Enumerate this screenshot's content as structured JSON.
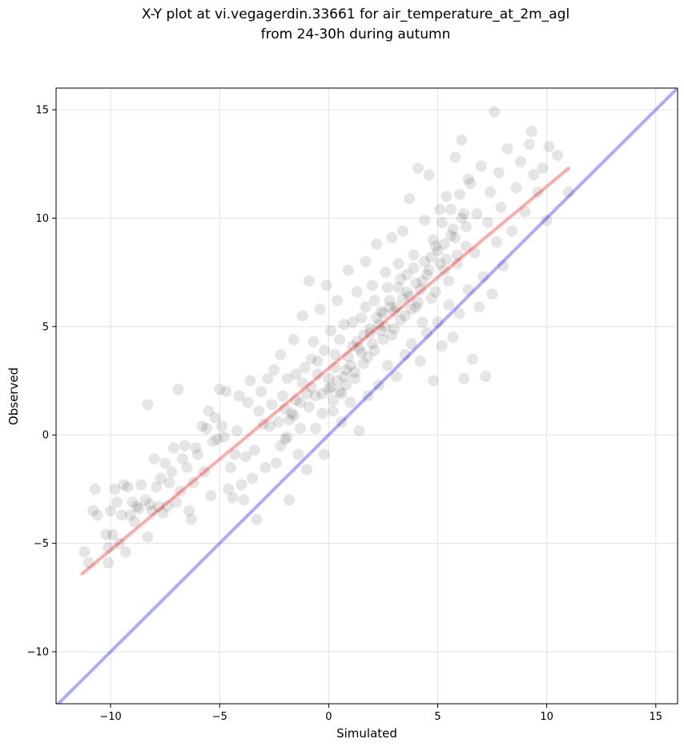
{
  "chart_data": {
    "type": "scatter",
    "title": "X-Y plot at vi.vegagerdin.33661 for air_temperature_at_2m_agl",
    "subtitle": "from 24-30h during autumn",
    "xlabel": "Simulated",
    "ylabel": "Observed",
    "xlim": [
      -12.5,
      16
    ],
    "ylim": [
      -12.4,
      16
    ],
    "xticks": [
      -10,
      -5,
      0,
      5,
      10,
      15
    ],
    "yticks": [
      -10,
      -5,
      0,
      5,
      10,
      15
    ],
    "xtick_labels": [
      "−10",
      "−5",
      "0",
      "5",
      "10",
      "15"
    ],
    "ytick_labels": [
      "−10",
      "−5",
      "0",
      "5",
      "10",
      "15"
    ],
    "grid": true,
    "point_color": "#000000",
    "point_alpha": 0.1,
    "identity_line": {
      "color": "#0000ff",
      "from": [
        -12.5,
        -12.5
      ],
      "to": [
        16,
        16
      ]
    },
    "fit_line": {
      "color": "#ff0000",
      "from": [
        -11.3,
        -6.4
      ],
      "to": [
        11,
        12.3
      ]
    },
    "points": [
      [
        -11.2,
        -5.4
      ],
      [
        -11,
        -5.9
      ],
      [
        -10.8,
        -3.5
      ],
      [
        -10.7,
        -2.5
      ],
      [
        -10.6,
        -3.7
      ],
      [
        -10.2,
        -4.6
      ],
      [
        -10.1,
        -5.9
      ],
      [
        -10.1,
        -5.2
      ],
      [
        -10,
        -3.5
      ],
      [
        -9.9,
        -4.6
      ],
      [
        -9.8,
        -2.5
      ],
      [
        -9.7,
        -3.1
      ],
      [
        -9.6,
        -5
      ],
      [
        -9.5,
        -3.7
      ],
      [
        -9.4,
        -2.3
      ],
      [
        -9.3,
        -5.4
      ],
      [
        -9.2,
        -2.4
      ],
      [
        -9.1,
        -3.7
      ],
      [
        -9,
        -3.1
      ],
      [
        -8.9,
        -4
      ],
      [
        -8.8,
        -3.3
      ],
      [
        -8.7,
        -3.4
      ],
      [
        -8.6,
        -2.3
      ],
      [
        -8.4,
        -3
      ],
      [
        -8.3,
        -4.7
      ],
      [
        -8.3,
        1.4
      ],
      [
        -8.2,
        -3.2
      ],
      [
        -8.1,
        -3.5
      ],
      [
        -8,
        -1.1
      ],
      [
        -7.9,
        -2.4
      ],
      [
        -7.8,
        -3.3
      ],
      [
        -7.7,
        -2
      ],
      [
        -7.6,
        -3.6
      ],
      [
        -7.5,
        -1.3
      ],
      [
        -7.4,
        -3.3
      ],
      [
        -7.3,
        -2.2
      ],
      [
        -7.2,
        -1.7
      ],
      [
        -7.1,
        -0.6
      ],
      [
        -7,
        -3.1
      ],
      [
        -6.9,
        2.1
      ],
      [
        -6.8,
        -2.6
      ],
      [
        -6.7,
        -1.1
      ],
      [
        -6.6,
        -0.5
      ],
      [
        -6.5,
        -1.5
      ],
      [
        -6.4,
        -3.5
      ],
      [
        -6.3,
        -3.9
      ],
      [
        -6.2,
        -2.2
      ],
      [
        -6.1,
        -0.6
      ],
      [
        -6,
        -0.9
      ],
      [
        -5.8,
        0.4
      ],
      [
        -5.7,
        -1.7
      ],
      [
        -5.6,
        0.3
      ],
      [
        -5.5,
        1.1
      ],
      [
        -5.4,
        -2.8
      ],
      [
        -5.3,
        -0.3
      ],
      [
        -5.2,
        0.8
      ],
      [
        -5.1,
        -0.2
      ],
      [
        -5,
        2.1
      ],
      [
        -4.9,
        0.4
      ],
      [
        -4.8,
        -0.1
      ],
      [
        -4.7,
        2
      ],
      [
        -4.6,
        -2.5
      ],
      [
        -4.5,
        -1.5
      ],
      [
        -4.4,
        -2.9
      ],
      [
        -4.3,
        -0.9
      ],
      [
        -4.2,
        0.2
      ],
      [
        -4.1,
        1.8
      ],
      [
        -4,
        -2.3
      ],
      [
        -3.9,
        -3
      ],
      [
        -3.8,
        -1
      ],
      [
        -3.7,
        1.5
      ],
      [
        -3.6,
        2.5
      ],
      [
        -3.5,
        -2
      ],
      [
        -3.4,
        -0.7
      ],
      [
        -3.3,
        -3.9
      ],
      [
        -3.2,
        1.1
      ],
      [
        -3.1,
        2
      ],
      [
        -3,
        0.5
      ],
      [
        -2.9,
        -1.5
      ],
      [
        -2.8,
        2.6
      ],
      [
        -2.7,
        0.4
      ],
      [
        -2.6,
        1.4
      ],
      [
        -2.5,
        3
      ],
      [
        -2.4,
        -1.3
      ],
      [
        -2.3,
        0.6
      ],
      [
        -2.2,
        3.7
      ],
      [
        -2.1,
        1.8
      ],
      [
        -2,
        -0.2
      ],
      [
        -1.9,
        2.6
      ],
      [
        -1.8,
        -3
      ],
      [
        -1.7,
        1
      ],
      [
        -1.6,
        4.4
      ],
      [
        -1.5,
        2.8
      ],
      [
        -1.4,
        -0.9
      ],
      [
        -1.3,
        1.5
      ],
      [
        -1.2,
        5.5
      ],
      [
        -1.1,
        3.1
      ],
      [
        -1,
        -1.6
      ],
      [
        -0.9,
        7.1
      ],
      [
        -0.8,
        2.2
      ],
      [
        -0.7,
        4.3
      ],
      [
        -0.6,
        0.3
      ],
      [
        -0.5,
        3.4
      ],
      [
        -0.4,
        5.8
      ],
      [
        -0.3,
        1.9
      ],
      [
        -0.2,
        -0.9
      ],
      [
        -0.1,
        6.9
      ],
      [
        0,
        2.6
      ],
      [
        0.1,
        4.8
      ],
      [
        0.2,
        1.1
      ],
      [
        0.3,
        3.7
      ],
      [
        0.4,
        6.2
      ],
      [
        0.5,
        2
      ],
      [
        0.6,
        0.6
      ],
      [
        0.7,
        5.1
      ],
      [
        0.8,
        3
      ],
      [
        0.9,
        7.6
      ],
      [
        1,
        1.5
      ],
      [
        1.1,
        4.1
      ],
      [
        1.2,
        2.6
      ],
      [
        1.3,
        6.6
      ],
      [
        1.4,
        0.2
      ],
      [
        1.5,
        5.4
      ],
      [
        1.6,
        3.3
      ],
      [
        1.7,
        8
      ],
      [
        1.8,
        1.8
      ],
      [
        1.9,
        4.7
      ],
      [
        2,
        6.9
      ],
      [
        2.1,
        3.9
      ],
      [
        2.2,
        8.8
      ],
      [
        2.3,
        2.3
      ],
      [
        2.4,
        5.7
      ],
      [
        2.5,
        4.4
      ],
      [
        2.6,
        7.5
      ],
      [
        2.7,
        3.2
      ],
      [
        2.8,
        6.2
      ],
      [
        2.9,
        9.1
      ],
      [
        3,
        4.9
      ],
      [
        3.1,
        2.7
      ],
      [
        3.2,
        7.9
      ],
      [
        3.3,
        5.3
      ],
      [
        3.4,
        9.4
      ],
      [
        3.5,
        3.7
      ],
      [
        3.6,
        6.6
      ],
      [
        3.7,
        10.9
      ],
      [
        3.8,
        4.2
      ],
      [
        3.9,
        8.3
      ],
      [
        4,
        5.9
      ],
      [
        4.1,
        12.3
      ],
      [
        4.2,
        3.4
      ],
      [
        4.3,
        7.1
      ],
      [
        4.4,
        9.9
      ],
      [
        4.5,
        4.7
      ],
      [
        4.6,
        12
      ],
      [
        4.7,
        6.3
      ],
      [
        4.8,
        2.5
      ],
      [
        4.9,
        8.7
      ],
      [
        5,
        5.2
      ],
      [
        5.1,
        10.4
      ],
      [
        5.2,
        4.1
      ],
      [
        5.3,
        7.6
      ],
      [
        5.4,
        11
      ],
      [
        5.5,
        6
      ],
      [
        5.6,
        9.2
      ],
      [
        5.7,
        4.5
      ],
      [
        5.8,
        12.8
      ],
      [
        5.9,
        7.9
      ],
      [
        6,
        5.6
      ],
      [
        6.1,
        13.6
      ],
      [
        6.2,
        2.6
      ],
      [
        6.3,
        9.6
      ],
      [
        6.4,
        6.7
      ],
      [
        6.5,
        11.6
      ],
      [
        6.6,
        3.5
      ],
      [
        6.7,
        8.4
      ],
      [
        6.8,
        10.2
      ],
      [
        6.9,
        5.9
      ],
      [
        7,
        12.4
      ],
      [
        7.1,
        7.3
      ],
      [
        7.2,
        2.7
      ],
      [
        7.3,
        9.8
      ],
      [
        7.4,
        11.2
      ],
      [
        7.5,
        6.5
      ],
      [
        7.6,
        14.9
      ],
      [
        7.7,
        8.9
      ],
      [
        7.8,
        12.1
      ],
      [
        7.9,
        10.5
      ],
      [
        8,
        7.8
      ],
      [
        8.2,
        13.2
      ],
      [
        8.4,
        9.4
      ],
      [
        8.6,
        11.4
      ],
      [
        8.8,
        12.6
      ],
      [
        9,
        10.3
      ],
      [
        9.2,
        13.4
      ],
      [
        9.3,
        14
      ],
      [
        9.4,
        12
      ],
      [
        9.6,
        11.2
      ],
      [
        9.8,
        12.3
      ],
      [
        10,
        9.9
      ],
      [
        10.1,
        13.3
      ],
      [
        10.5,
        12.9
      ],
      [
        11,
        11.2
      ],
      [
        -2,
        1.2
      ],
      [
        -1.8,
        0.7
      ],
      [
        -1.5,
        1.6
      ],
      [
        -1.2,
        2.4
      ],
      [
        -1,
        1.9
      ],
      [
        -0.8,
        3.5
      ],
      [
        -0.5,
        2.8
      ],
      [
        -0.2,
        3.9
      ],
      [
        0.1,
        2.2
      ],
      [
        0.3,
        3.1
      ],
      [
        0.5,
        4.4
      ],
      [
        0.7,
        2.7
      ],
      [
        0.9,
        3.6
      ],
      [
        1.1,
        5.2
      ],
      [
        1.3,
        4.3
      ],
      [
        1.5,
        3.8
      ],
      [
        1.7,
        5.9
      ],
      [
        1.9,
        4.9
      ],
      [
        2.1,
        6.2
      ],
      [
        2.3,
        5.1
      ],
      [
        2.5,
        5.6
      ],
      [
        2.7,
        6.8
      ],
      [
        2.9,
        4.6
      ],
      [
        3.1,
        5.9
      ],
      [
        3.3,
        7.2
      ],
      [
        3.5,
        5.5
      ],
      [
        3.7,
        6.4
      ],
      [
        3.9,
        7.7
      ],
      [
        4.1,
        6.1
      ],
      [
        4.3,
        5.2
      ],
      [
        4.5,
        7.4
      ],
      [
        4.7,
        8.2
      ],
      [
        4.9,
        6.6
      ],
      [
        5.1,
        7.9
      ],
      [
        5.3,
        8.8
      ],
      [
        5.5,
        7.1
      ],
      [
        5.7,
        9.5
      ],
      [
        5.9,
        8.3
      ],
      [
        6.1,
        10
      ],
      [
        6.3,
        8.7
      ],
      [
        -2.2,
        -0.5
      ],
      [
        -1.9,
        -0.1
      ],
      [
        -1.6,
        0.9
      ],
      [
        -1.3,
        0.3
      ],
      [
        -0.9,
        1.3
      ],
      [
        -0.6,
        1.8
      ],
      [
        -0.3,
        1
      ],
      [
        0,
        2.1
      ],
      [
        0.2,
        1.6
      ],
      [
        0.4,
        2.5
      ],
      [
        0.6,
        1.9
      ],
      [
        0.8,
        2.3
      ],
      [
        1,
        3.2
      ],
      [
        1.2,
        2.9
      ],
      [
        1.4,
        4
      ],
      [
        1.6,
        4.6
      ],
      [
        1.8,
        3.6
      ],
      [
        2,
        4.2
      ],
      [
        2.2,
        5.4
      ],
      [
        2.4,
        4.8
      ],
      [
        2.6,
        5
      ],
      [
        2.8,
        5.9
      ],
      [
        3,
        5.7
      ],
      [
        3.2,
        6.8
      ],
      [
        3.4,
        6.3
      ],
      [
        3.6,
        7.4
      ],
      [
        3.8,
        5.8
      ],
      [
        4,
        7
      ],
      [
        4.2,
        6.7
      ],
      [
        4.4,
        8
      ],
      [
        4.6,
        7.6
      ],
      [
        4.8,
        9
      ],
      [
        5,
        8.5
      ],
      [
        5.2,
        9.8
      ],
      [
        5.4,
        8.1
      ],
      [
        5.6,
        10.4
      ],
      [
        5.8,
        9.1
      ],
      [
        6,
        11.1
      ],
      [
        6.2,
        10.2
      ],
      [
        6.4,
        11.8
      ]
    ]
  }
}
